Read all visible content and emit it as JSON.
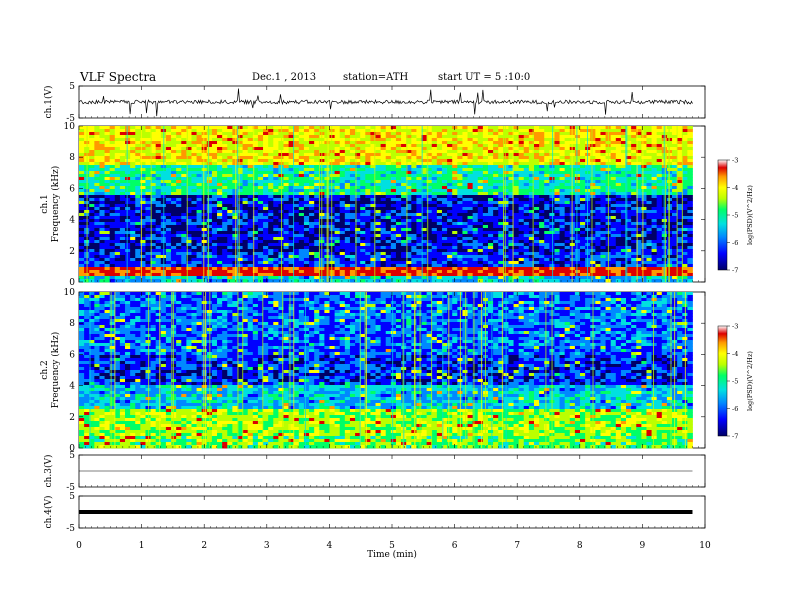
{
  "header": {
    "title": "VLF Spectra",
    "date": "Dec.1 , 2013",
    "station": "station=ATH",
    "start": "start UT = 5 :10:0"
  },
  "colors": {
    "colormap": [
      "#000066",
      "#0000ff",
      "#0088ff",
      "#00e0e0",
      "#00ff66",
      "#bbff00",
      "#ffff00",
      "#ff9900",
      "#dd0000",
      "#ffffff"
    ],
    "trace": "#000000"
  },
  "chart_data": [
    {
      "type": "line",
      "panel": "ch1-waveform",
      "ylabel": "ch.1(V)",
      "ylim": [
        -5,
        5
      ],
      "yticks": [
        "5",
        "-5"
      ],
      "x": [
        0,
        1,
        2,
        3,
        4,
        5,
        6,
        7,
        8,
        9,
        9.8
      ],
      "y_level": [
        0,
        0,
        0,
        0,
        0,
        0,
        0,
        0,
        0,
        0,
        0
      ],
      "noise_amplitude_v": 1.0
    },
    {
      "type": "heatmap",
      "panel": "ch1-spectrogram",
      "ylabel": "ch.1\nFrequency (kHz)",
      "ylabel_top": "ch.1",
      "ylabel_bottom": "Frequency (kHz)",
      "ylim": [
        0,
        10
      ],
      "yticks": [
        "0",
        "2",
        "4",
        "6",
        "8",
        "10"
      ],
      "xlim": [
        0,
        10
      ],
      "colorbar": {
        "label": "log(PSD)(V^2/Hz)",
        "range": [
          -7,
          -3
        ],
        "ticks": [
          "-3",
          "-4",
          "-5",
          "-6",
          "-7"
        ]
      },
      "value_bands": [
        {
          "f": [
            0,
            0.3
          ],
          "log_psd": -5.6
        },
        {
          "f": [
            0.3,
            0.9
          ],
          "log_psd": -3.3
        },
        {
          "f": [
            0.9,
            2.0
          ],
          "log_psd": -6.2
        },
        {
          "f": [
            2.0,
            5.5
          ],
          "log_psd": -6.4
        },
        {
          "f": [
            5.5,
            7.5
          ],
          "log_psd": -5.2
        },
        {
          "f": [
            7.5,
            10
          ],
          "log_psd": -4.2
        }
      ]
    },
    {
      "type": "heatmap",
      "panel": "ch2-spectrogram",
      "ylabel": "ch.2\nFrequency (kHz)",
      "ylabel_top": "ch.2",
      "ylabel_bottom": "Frequency (kHz)",
      "ylim": [
        0,
        10
      ],
      "yticks": [
        "0",
        "2",
        "4",
        "6",
        "8",
        "10"
      ],
      "xlim": [
        0,
        10
      ],
      "colorbar": {
        "label": "log(PSD)(V^2/Hz)",
        "range": [
          -7,
          -3
        ],
        "ticks": [
          "-3",
          "-4",
          "-5",
          "-6",
          "-7"
        ]
      },
      "value_bands": [
        {
          "f": [
            0,
            0.8
          ],
          "log_psd": -4.8
        },
        {
          "f": [
            0.8,
            2.5
          ],
          "log_psd": -4.6
        },
        {
          "f": [
            2.5,
            4.0
          ],
          "log_psd": -5.6
        },
        {
          "f": [
            4.0,
            6.0
          ],
          "log_psd": -6.3
        },
        {
          "f": [
            6.0,
            10
          ],
          "log_psd": -6.0
        }
      ]
    },
    {
      "type": "line",
      "panel": "ch3-waveform",
      "ylabel": "ch.3(V)",
      "ylim": [
        -5,
        5
      ],
      "yticks": [
        "5",
        "-5"
      ],
      "x": [
        0,
        9.8
      ],
      "y": [
        0,
        0
      ]
    },
    {
      "type": "line",
      "panel": "ch4-waveform",
      "ylabel": "ch.4(V)",
      "ylim": [
        -5,
        5
      ],
      "yticks": [
        "5",
        "-5"
      ],
      "x": [
        0,
        9.8
      ],
      "y": [
        0,
        0
      ]
    }
  ],
  "xaxis": {
    "label": "Time (min)",
    "range": [
      0,
      10
    ],
    "ticks": [
      "0",
      "1",
      "2",
      "3",
      "4",
      "5",
      "6",
      "7",
      "8",
      "9",
      "10"
    ]
  }
}
